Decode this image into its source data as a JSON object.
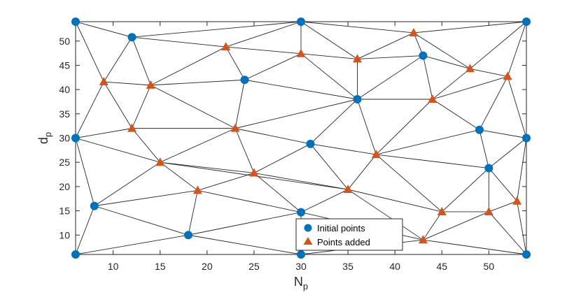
{
  "chart_data": {
    "type": "scatter",
    "xlabel": "N",
    "xlabel_sub": "p",
    "ylabel": "d",
    "ylabel_sub": "p",
    "xlim": [
      6,
      54
    ],
    "ylim": [
      6,
      54
    ],
    "xticks": [
      10,
      15,
      20,
      25,
      30,
      35,
      40,
      45,
      50
    ],
    "yticks": [
      10,
      15,
      20,
      25,
      30,
      35,
      40,
      45,
      50
    ],
    "grid": false,
    "legend_position": "bottom-right",
    "series": [
      {
        "name": "Initial points",
        "marker": "circle",
        "color": "#0072BD",
        "points": [
          [
            6,
            54
          ],
          [
            30,
            54
          ],
          [
            54,
            54
          ],
          [
            12,
            50.8
          ],
          [
            43,
            47
          ],
          [
            24,
            42
          ],
          [
            36,
            38
          ],
          [
            49,
            31.7
          ],
          [
            6,
            30
          ],
          [
            54,
            30
          ],
          [
            31,
            28.8
          ],
          [
            50,
            23.8
          ],
          [
            8,
            16
          ],
          [
            30,
            14.7
          ],
          [
            18,
            10
          ],
          [
            6,
            6
          ],
          [
            30,
            6
          ],
          [
            54,
            6
          ]
        ]
      },
      {
        "name": "Points added",
        "marker": "triangle",
        "color": "#D95319",
        "points": [
          [
            42,
            51.7
          ],
          [
            22,
            48.8
          ],
          [
            30,
            47.4
          ],
          [
            36,
            46.3
          ],
          [
            48,
            44.3
          ],
          [
            52,
            42.7
          ],
          [
            9,
            41.6
          ],
          [
            14,
            40.9
          ],
          [
            44,
            38
          ],
          [
            12,
            32
          ],
          [
            23,
            32
          ],
          [
            38,
            26.6
          ],
          [
            15,
            25
          ],
          [
            25,
            22.8
          ],
          [
            19,
            19.2
          ],
          [
            35,
            19.4
          ],
          [
            53,
            17
          ],
          [
            45,
            14.8
          ],
          [
            50,
            14.8
          ],
          [
            43,
            9
          ]
        ]
      }
    ],
    "edges": [
      [
        [
          6,
          54
        ],
        [
          30,
          54
        ]
      ],
      [
        [
          30,
          54
        ],
        [
          54,
          54
        ]
      ],
      [
        [
          54,
          54
        ],
        [
          54,
          30
        ]
      ],
      [
        [
          54,
          30
        ],
        [
          54,
          6
        ]
      ],
      [
        [
          54,
          6
        ],
        [
          30,
          6
        ]
      ],
      [
        [
          30,
          6
        ],
        [
          6,
          6
        ]
      ],
      [
        [
          6,
          6
        ],
        [
          6,
          30
        ]
      ],
      [
        [
          6,
          30
        ],
        [
          6,
          54
        ]
      ],
      [
        [
          6,
          54
        ],
        [
          12,
          50.8
        ]
      ],
      [
        [
          6,
          54
        ],
        [
          9,
          41.6
        ]
      ],
      [
        [
          12,
          50.8
        ],
        [
          9,
          41.6
        ]
      ],
      [
        [
          12,
          50.8
        ],
        [
          14,
          40.9
        ]
      ],
      [
        [
          12,
          50.8
        ],
        [
          30,
          54
        ]
      ],
      [
        [
          12,
          50.8
        ],
        [
          22,
          48.8
        ]
      ],
      [
        [
          22,
          48.8
        ],
        [
          30,
          54
        ]
      ],
      [
        [
          22,
          48.8
        ],
        [
          14,
          40.9
        ]
      ],
      [
        [
          22,
          48.8
        ],
        [
          24,
          42
        ]
      ],
      [
        [
          22,
          48.8
        ],
        [
          30,
          47.4
        ]
      ],
      [
        [
          30,
          54
        ],
        [
          30,
          47.4
        ]
      ],
      [
        [
          30,
          54
        ],
        [
          36,
          46.3
        ]
      ],
      [
        [
          30,
          54
        ],
        [
          42,
          51.7
        ]
      ],
      [
        [
          42,
          51.7
        ],
        [
          54,
          54
        ]
      ],
      [
        [
          42,
          51.7
        ],
        [
          36,
          46.3
        ]
      ],
      [
        [
          42,
          51.7
        ],
        [
          43,
          47
        ]
      ],
      [
        [
          42,
          51.7
        ],
        [
          48,
          44.3
        ]
      ],
      [
        [
          54,
          54
        ],
        [
          48,
          44.3
        ]
      ],
      [
        [
          54,
          54
        ],
        [
          52,
          42.7
        ]
      ],
      [
        [
          48,
          44.3
        ],
        [
          52,
          42.7
        ]
      ],
      [
        [
          43,
          47
        ],
        [
          48,
          44.3
        ]
      ],
      [
        [
          36,
          46.3
        ],
        [
          43,
          47
        ]
      ],
      [
        [
          30,
          47.4
        ],
        [
          36,
          46.3
        ]
      ],
      [
        [
          30,
          47.4
        ],
        [
          24,
          42
        ]
      ],
      [
        [
          30,
          47.4
        ],
        [
          36,
          38
        ]
      ],
      [
        [
          36,
          46.3
        ],
        [
          36,
          38
        ]
      ],
      [
        [
          43,
          47
        ],
        [
          36,
          38
        ]
      ],
      [
        [
          43,
          47
        ],
        [
          44,
          38
        ]
      ],
      [
        [
          48,
          44.3
        ],
        [
          44,
          38
        ]
      ],
      [
        [
          52,
          42.7
        ],
        [
          44,
          38
        ]
      ],
      [
        [
          52,
          42.7
        ],
        [
          49,
          31.7
        ]
      ],
      [
        [
          52,
          42.7
        ],
        [
          54,
          30
        ]
      ],
      [
        [
          9,
          41.6
        ],
        [
          14,
          40.9
        ]
      ],
      [
        [
          9,
          41.6
        ],
        [
          6,
          30
        ]
      ],
      [
        [
          9,
          41.6
        ],
        [
          12,
          32
        ]
      ],
      [
        [
          14,
          40.9
        ],
        [
          12,
          32
        ]
      ],
      [
        [
          14,
          40.9
        ],
        [
          24,
          42
        ]
      ],
      [
        [
          14,
          40.9
        ],
        [
          23,
          32
        ]
      ],
      [
        [
          24,
          42
        ],
        [
          23,
          32
        ]
      ],
      [
        [
          24,
          42
        ],
        [
          36,
          38
        ]
      ],
      [
        [
          6,
          30
        ],
        [
          12,
          32
        ]
      ],
      [
        [
          12,
          32
        ],
        [
          23,
          32
        ]
      ],
      [
        [
          12,
          32
        ],
        [
          15,
          25
        ]
      ],
      [
        [
          23,
          32
        ],
        [
          15,
          25
        ]
      ],
      [
        [
          23,
          32
        ],
        [
          25,
          22.8
        ]
      ],
      [
        [
          23,
          32
        ],
        [
          31,
          28.8
        ]
      ],
      [
        [
          23,
          32
        ],
        [
          36,
          38
        ]
      ],
      [
        [
          36,
          38
        ],
        [
          31,
          28.8
        ]
      ],
      [
        [
          36,
          38
        ],
        [
          38,
          26.6
        ]
      ],
      [
        [
          36,
          38
        ],
        [
          44,
          38
        ]
      ],
      [
        [
          44,
          38
        ],
        [
          38,
          26.6
        ]
      ],
      [
        [
          44,
          38
        ],
        [
          49,
          31.7
        ]
      ],
      [
        [
          49,
          31.7
        ],
        [
          54,
          30
        ]
      ],
      [
        [
          49,
          31.7
        ],
        [
          50,
          23.8
        ]
      ],
      [
        [
          54,
          30
        ],
        [
          50,
          23.8
        ]
      ],
      [
        [
          54,
          30
        ],
        [
          53,
          17
        ]
      ],
      [
        [
          38,
          26.6
        ],
        [
          49,
          31.7
        ]
      ],
      [
        [
          38,
          26.6
        ],
        [
          50,
          23.8
        ]
      ],
      [
        [
          31,
          28.8
        ],
        [
          38,
          26.6
        ]
      ],
      [
        [
          31,
          28.8
        ],
        [
          25,
          22.8
        ]
      ],
      [
        [
          31,
          28.8
        ],
        [
          35,
          19.4
        ]
      ],
      [
        [
          38,
          26.6
        ],
        [
          35,
          19.4
        ]
      ],
      [
        [
          38,
          26.6
        ],
        [
          45,
          14.8
        ]
      ],
      [
        [
          50,
          23.8
        ],
        [
          45,
          14.8
        ]
      ],
      [
        [
          50,
          23.8
        ],
        [
          50,
          14.8
        ]
      ],
      [
        [
          50,
          23.8
        ],
        [
          53,
          17
        ]
      ],
      [
        [
          53,
          17
        ],
        [
          50,
          14.8
        ]
      ],
      [
        [
          53,
          17
        ],
        [
          54,
          6
        ]
      ],
      [
        [
          50,
          14.8
        ],
        [
          54,
          6
        ]
      ],
      [
        [
          50,
          14.8
        ],
        [
          45,
          14.8
        ]
      ],
      [
        [
          50,
          14.8
        ],
        [
          43,
          9
        ]
      ],
      [
        [
          45,
          14.8
        ],
        [
          43,
          9
        ]
      ],
      [
        [
          43,
          9
        ],
        [
          54,
          6
        ]
      ],
      [
        [
          45,
          14.8
        ],
        [
          35,
          19.4
        ]
      ],
      [
        [
          35,
          19.4
        ],
        [
          43,
          9
        ]
      ],
      [
        [
          6,
          30
        ],
        [
          15,
          25
        ]
      ],
      [
        [
          6,
          30
        ],
        [
          8,
          16
        ]
      ],
      [
        [
          15,
          25
        ],
        [
          8,
          16
        ]
      ],
      [
        [
          15,
          25
        ],
        [
          19,
          19.2
        ]
      ],
      [
        [
          15,
          25
        ],
        [
          25,
          22.8
        ]
      ],
      [
        [
          15,
          25
        ],
        [
          35,
          19.4
        ]
      ],
      [
        [
          25,
          22.8
        ],
        [
          19,
          19.2
        ]
      ],
      [
        [
          25,
          22.8
        ],
        [
          30,
          14.7
        ]
      ],
      [
        [
          8,
          16
        ],
        [
          19,
          19.2
        ]
      ],
      [
        [
          19,
          19.2
        ],
        [
          30,
          14.7
        ]
      ],
      [
        [
          19,
          19.2
        ],
        [
          18,
          10
        ]
      ],
      [
        [
          8,
          16
        ],
        [
          6,
          6
        ]
      ],
      [
        [
          8,
          16
        ],
        [
          18,
          10
        ]
      ],
      [
        [
          18,
          10
        ],
        [
          6,
          6
        ]
      ],
      [
        [
          18,
          10
        ],
        [
          30,
          14.7
        ]
      ],
      [
        [
          18,
          10
        ],
        [
          30,
          6
        ]
      ],
      [
        [
          30,
          14.7
        ],
        [
          30,
          6
        ]
      ],
      [
        [
          30,
          14.7
        ],
        [
          35,
          19.4
        ]
      ],
      [
        [
          30,
          14.7
        ],
        [
          43,
          9
        ]
      ],
      [
        [
          30,
          6
        ],
        [
          43,
          9
        ]
      ],
      [
        [
          25,
          22.8
        ],
        [
          35,
          19.4
        ]
      ]
    ]
  }
}
